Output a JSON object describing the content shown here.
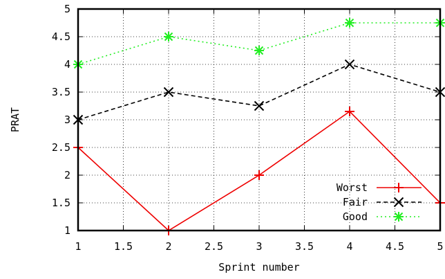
{
  "chart_data": {
    "type": "line",
    "title": "",
    "xlabel": "Sprint number",
    "ylabel": "PRAT",
    "xlim": [
      1,
      5
    ],
    "ylim": [
      1,
      5
    ],
    "xticks": [
      "1",
      "1.5",
      "2",
      "2.5",
      "3",
      "3.5",
      "4",
      "4.5",
      "5"
    ],
    "yticks": [
      "1",
      "1.5",
      "2",
      "2.5",
      "3",
      "3.5",
      "4",
      "4.5",
      "5"
    ],
    "grid": true,
    "legend_position": "bottom-right",
    "series": [
      {
        "name": "Worst",
        "color": "#ee0000",
        "dash": "solid",
        "marker": "plus",
        "x": [
          1,
          2,
          3,
          4,
          5
        ],
        "y": [
          2.5,
          1,
          2,
          3.15,
          1.5
        ]
      },
      {
        "name": "Fair",
        "color": "#000000",
        "dash": "dashed",
        "marker": "cross",
        "x": [
          1,
          2,
          3,
          4,
          5
        ],
        "y": [
          3,
          3.5,
          3.25,
          4,
          3.5
        ]
      },
      {
        "name": "Good",
        "color": "#22ee22",
        "dash": "dotted",
        "marker": "star",
        "x": [
          1,
          2,
          3,
          4,
          5
        ],
        "y": [
          4,
          4.5,
          4.25,
          4.75,
          4.75
        ]
      }
    ]
  }
}
